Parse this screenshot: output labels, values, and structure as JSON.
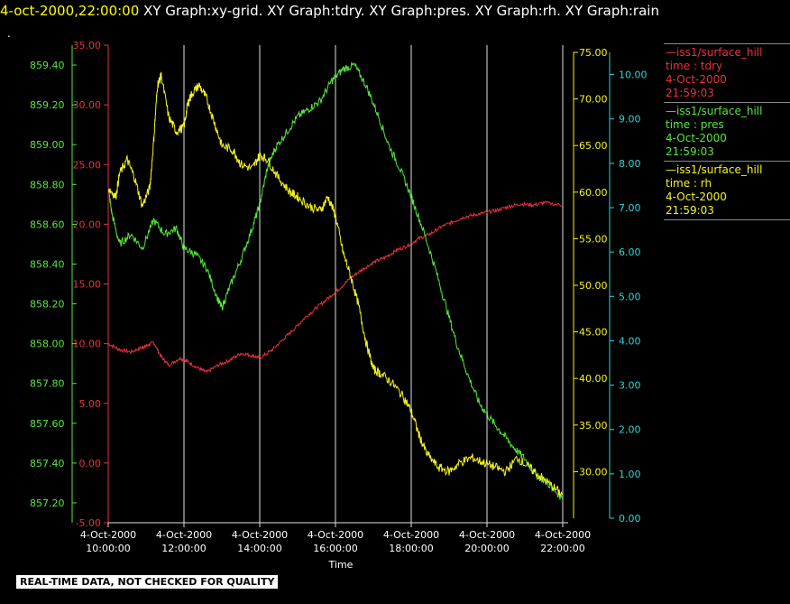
{
  "header": {
    "timestamp": "4-oct-2000,22:00:00",
    "graphs": "  XY Graph:xy-grid.  XY Graph:tdry.  XY Graph:pres.  XY Graph:rh.  XY Graph:rain",
    "dot": "."
  },
  "disclaimer": "REAL-TIME DATA, NOT CHECKED FOR QUALITY",
  "colors": {
    "tdry": "#e8323c",
    "pres": "#55e83a",
    "rh": "#f5f51e",
    "rain": "#30d4d4",
    "grid": "#e0e0e0"
  },
  "legend": [
    {
      "station": "—iss1/surface_hill",
      "field": "time : tdry",
      "date": "4-Oct-2000",
      "time": "21:59:03",
      "color": "#e8323c"
    },
    {
      "station": "—iss1/surface_hill",
      "field": "time : pres",
      "date": "4-Oct-2000",
      "time": "21:59:03",
      "color": "#55e83a"
    },
    {
      "station": "—iss1/surface_hill",
      "field": "time : rh",
      "date": "4-Oct-2000",
      "time": "21:59:03",
      "color": "#f5f51e"
    }
  ],
  "chart_data": {
    "type": "line",
    "xlabel": "Time",
    "x_ticks": [
      {
        "hour": 10,
        "date": "4-Oct-2000",
        "time": "10:00:00"
      },
      {
        "hour": 12,
        "date": "4-Oct-2000",
        "time": "12:00:00"
      },
      {
        "hour": 14,
        "date": "4-Oct-2000",
        "time": "14:00:00"
      },
      {
        "hour": 16,
        "date": "4-Oct-2000",
        "time": "16:00:00"
      },
      {
        "hour": 18,
        "date": "4-Oct-2000",
        "time": "18:00:00"
      },
      {
        "hour": 20,
        "date": "4-Oct-2000",
        "time": "20:00:00"
      },
      {
        "hour": 22,
        "date": "4-Oct-2000",
        "time": "22:00:00"
      }
    ],
    "xlim": [
      10,
      22
    ],
    "axes": {
      "tdry": {
        "ylim": [
          -5,
          35
        ],
        "ticks": [
          "-5.00",
          "0.00",
          "5.00",
          "10.00",
          "15.00",
          "20.00",
          "25.00",
          "30.00",
          "35.00"
        ]
      },
      "pres": {
        "ylim": [
          857.1,
          859.5
        ],
        "ticks": [
          "857.20",
          "857.40",
          "857.60",
          "857.80",
          "858.00",
          "858.20",
          "858.40",
          "858.60",
          "858.80",
          "859.00",
          "859.20",
          "859.40"
        ]
      },
      "rh": {
        "ylim": [
          25,
          75
        ],
        "ticks": [
          "30.00",
          "35.00",
          "40.00",
          "45.00",
          "50.00",
          "55.00",
          "60.00",
          "65.00",
          "70.00",
          "75.00"
        ]
      },
      "rain": {
        "ylim": [
          0,
          10.5
        ],
        "ticks": [
          "0.00",
          "1.00",
          "2.00",
          "3.00",
          "4.00",
          "5.00",
          "6.00",
          "7.00",
          "8.00",
          "9.00",
          "10.00"
        ]
      }
    },
    "series": [
      {
        "key": "tdry",
        "axis": "tdry",
        "values": [
          [
            10.0,
            10.0
          ],
          [
            10.3,
            9.5
          ],
          [
            10.6,
            9.3
          ],
          [
            10.9,
            9.7
          ],
          [
            11.0,
            9.8
          ],
          [
            11.2,
            10.1
          ],
          [
            11.4,
            8.9
          ],
          [
            11.6,
            8.2
          ],
          [
            11.9,
            8.8
          ],
          [
            12.1,
            8.5
          ],
          [
            12.4,
            7.9
          ],
          [
            12.6,
            7.6
          ],
          [
            12.9,
            8.2
          ],
          [
            13.2,
            8.6
          ],
          [
            13.5,
            9.2
          ],
          [
            13.8,
            9.0
          ],
          [
            14.0,
            8.8
          ],
          [
            14.3,
            9.4
          ],
          [
            14.6,
            10.3
          ],
          [
            14.9,
            11.2
          ],
          [
            15.2,
            12.2
          ],
          [
            15.5,
            13.0
          ],
          [
            15.8,
            13.8
          ],
          [
            16.1,
            14.6
          ],
          [
            16.4,
            15.5
          ],
          [
            16.7,
            16.2
          ],
          [
            17.0,
            16.8
          ],
          [
            17.3,
            17.2
          ],
          [
            17.6,
            17.8
          ],
          [
            17.9,
            18.2
          ],
          [
            18.2,
            18.8
          ],
          [
            18.5,
            19.2
          ],
          [
            18.8,
            19.8
          ],
          [
            19.1,
            20.2
          ],
          [
            19.4,
            20.6
          ],
          [
            19.7,
            20.8
          ],
          [
            20.0,
            21.0
          ],
          [
            20.3,
            21.2
          ],
          [
            20.6,
            21.5
          ],
          [
            20.9,
            21.7
          ],
          [
            21.2,
            21.6
          ],
          [
            21.5,
            21.8
          ],
          [
            22.0,
            21.6
          ]
        ]
      },
      {
        "key": "pres",
        "axis": "pres",
        "values": [
          [
            10.0,
            858.78
          ],
          [
            10.1,
            858.65
          ],
          [
            10.3,
            858.5
          ],
          [
            10.6,
            858.55
          ],
          [
            10.9,
            858.48
          ],
          [
            11.2,
            858.62
          ],
          [
            11.5,
            858.55
          ],
          [
            11.8,
            858.58
          ],
          [
            12.0,
            858.48
          ],
          [
            12.3,
            858.45
          ],
          [
            12.6,
            858.38
          ],
          [
            12.9,
            858.22
          ],
          [
            13.0,
            858.18
          ],
          [
            13.2,
            858.28
          ],
          [
            13.5,
            858.42
          ],
          [
            13.8,
            858.58
          ],
          [
            14.0,
            858.7
          ],
          [
            14.2,
            858.88
          ],
          [
            14.4,
            858.98
          ],
          [
            14.7,
            859.06
          ],
          [
            15.0,
            859.14
          ],
          [
            15.3,
            859.18
          ],
          [
            15.6,
            859.22
          ],
          [
            15.9,
            859.32
          ],
          [
            16.2,
            859.38
          ],
          [
            16.5,
            859.4
          ],
          [
            16.8,
            859.3
          ],
          [
            17.1,
            859.16
          ],
          [
            17.4,
            859.0
          ],
          [
            17.7,
            858.88
          ],
          [
            18.0,
            858.74
          ],
          [
            18.3,
            858.58
          ],
          [
            18.6,
            858.4
          ],
          [
            18.9,
            858.2
          ],
          [
            19.2,
            858.0
          ],
          [
            19.5,
            857.84
          ],
          [
            19.8,
            857.7
          ],
          [
            20.1,
            857.62
          ],
          [
            20.4,
            857.55
          ],
          [
            20.7,
            857.48
          ],
          [
            21.0,
            857.42
          ],
          [
            21.3,
            857.34
          ],
          [
            21.6,
            857.3
          ],
          [
            22.0,
            857.22
          ]
        ]
      },
      {
        "key": "rh",
        "axis": "rh",
        "values": [
          [
            10.0,
            60.5
          ],
          [
            10.2,
            59.5
          ],
          [
            10.3,
            62.0
          ],
          [
            10.5,
            63.5
          ],
          [
            10.7,
            61.5
          ],
          [
            10.9,
            58.5
          ],
          [
            11.1,
            60.5
          ],
          [
            11.2,
            65.5
          ],
          [
            11.3,
            71.5
          ],
          [
            11.4,
            72.5
          ],
          [
            11.6,
            68.0
          ],
          [
            11.8,
            66.5
          ],
          [
            12.0,
            67.0
          ],
          [
            12.1,
            69.5
          ],
          [
            12.2,
            70.5
          ],
          [
            12.4,
            71.5
          ],
          [
            12.6,
            70.0
          ],
          [
            12.8,
            67.5
          ],
          [
            13.0,
            65.0
          ],
          [
            13.3,
            64.5
          ],
          [
            13.5,
            63.0
          ],
          [
            13.8,
            62.5
          ],
          [
            14.0,
            64.0
          ],
          [
            14.2,
            63.5
          ],
          [
            14.5,
            61.5
          ],
          [
            14.8,
            60.0
          ],
          [
            15.0,
            59.5
          ],
          [
            15.3,
            58.5
          ],
          [
            15.6,
            58.0
          ],
          [
            15.8,
            59.5
          ],
          [
            16.0,
            57.5
          ],
          [
            16.2,
            53.5
          ],
          [
            16.4,
            51.0
          ],
          [
            16.6,
            48.0
          ],
          [
            16.8,
            44.0
          ],
          [
            17.0,
            41.0
          ],
          [
            17.2,
            40.5
          ],
          [
            17.5,
            39.5
          ],
          [
            17.8,
            38.0
          ],
          [
            18.0,
            36.5
          ],
          [
            18.2,
            34.0
          ],
          [
            18.4,
            32.0
          ],
          [
            18.7,
            30.5
          ],
          [
            19.0,
            30.0
          ],
          [
            19.3,
            31.0
          ],
          [
            19.6,
            31.5
          ],
          [
            19.9,
            31.0
          ],
          [
            20.2,
            30.5
          ],
          [
            20.5,
            30.0
          ],
          [
            20.8,
            31.5
          ],
          [
            21.1,
            30.5
          ],
          [
            21.4,
            29.5
          ],
          [
            21.7,
            28.5
          ],
          [
            22.0,
            27.5
          ]
        ]
      }
    ]
  }
}
